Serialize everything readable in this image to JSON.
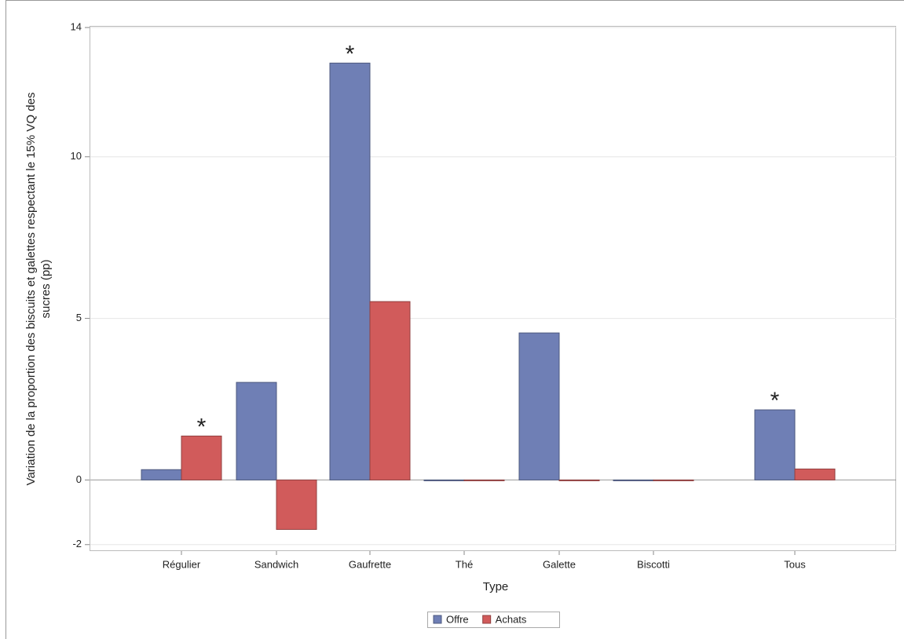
{
  "chart_data": {
    "type": "bar",
    "y_label_lines": [
      "Variation de la proportion des biscuits et galettes respectant le 15% VQ des",
      "sucres (pp)"
    ],
    "x_label": "Type",
    "categories": [
      "Régulier",
      "Sandwich",
      "Gaufrette",
      "Thé",
      "Galette",
      "Biscotti",
      "Tous"
    ],
    "series": [
      {
        "name": "Offre",
        "color": "#6f7fb5",
        "values": [
          0.32,
          3.02,
          12.9,
          -0.02,
          4.55,
          -0.02,
          2.17
        ]
      },
      {
        "name": "Achats",
        "color": "#d15b5b",
        "values": [
          1.36,
          -1.53,
          5.52,
          -0.02,
          -0.02,
          -0.02,
          0.34
        ]
      }
    ],
    "ylim": [
      -2.2,
      14.05
    ],
    "yticks": [
      -2,
      0,
      5,
      10,
      14
    ],
    "grid": true,
    "annotations": [
      {
        "text": "*",
        "category": "Régulier",
        "series": "Achats"
      },
      {
        "text": "*",
        "category": "Gaufrette",
        "series": "Offre"
      },
      {
        "text": "*",
        "category": "Tous",
        "series": "Offre"
      }
    ],
    "legend": "bottom"
  }
}
